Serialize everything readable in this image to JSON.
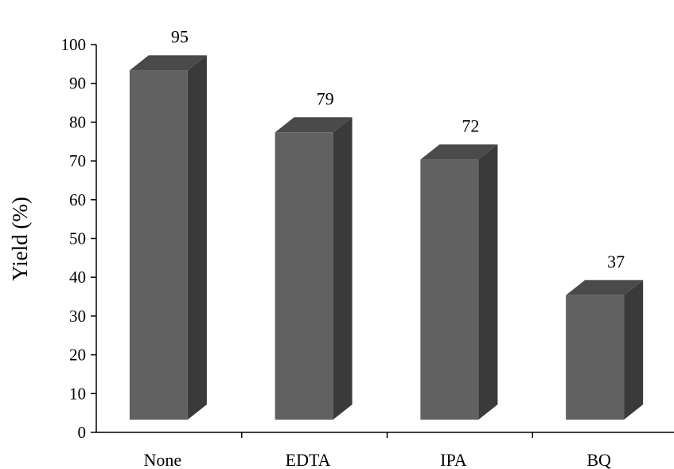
{
  "chart_data": {
    "type": "bar",
    "style": "3d-column",
    "categories": [
      "None",
      "EDTA",
      "IPA",
      "BQ"
    ],
    "values": [
      95,
      79,
      72,
      37
    ],
    "data_labels": [
      "95",
      "79",
      "72",
      "37"
    ],
    "ylabel": "Yield (%)",
    "ylim": [
      0,
      100
    ],
    "yticks": [
      "0",
      "10",
      "20",
      "30",
      "40",
      "50",
      "60",
      "70",
      "80",
      "90",
      "100"
    ],
    "grid": false,
    "legend": "none",
    "colors": {
      "bar_front": "#616161",
      "bar_side": "#3a3a3a",
      "bar_top": "#4a4a4a",
      "axis": "#000000"
    }
  }
}
